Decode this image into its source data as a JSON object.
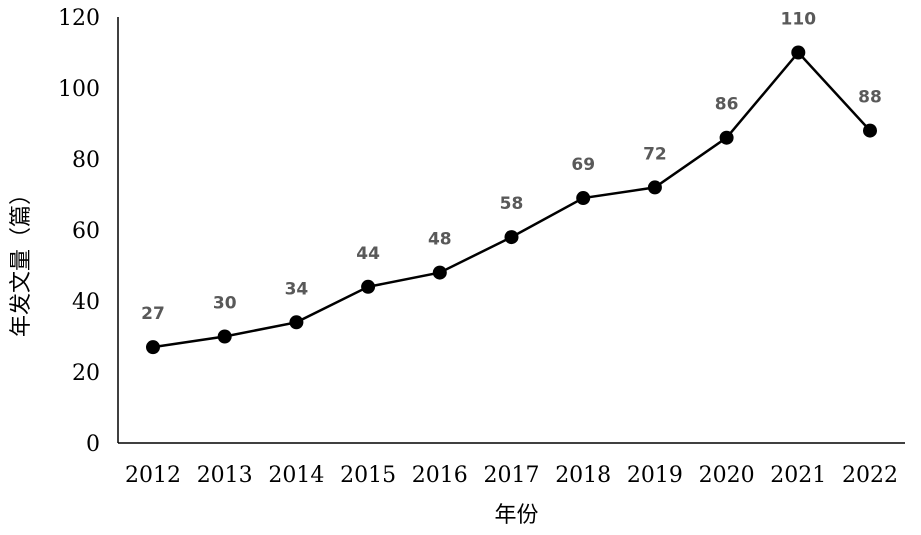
{
  "chart_data": {
    "type": "line",
    "title": "",
    "xlabel": "年份",
    "ylabel": "年发文量（篇）",
    "ylim": [
      0,
      120
    ],
    "yticks": [
      0,
      20,
      40,
      60,
      80,
      100,
      120
    ],
    "grid": false,
    "legend": "none",
    "categories": [
      "2012",
      "2013",
      "2014",
      "2015",
      "2016",
      "2017",
      "2018",
      "2019",
      "2020",
      "2021",
      "2022"
    ],
    "series": [
      {
        "values": [
          27,
          30,
          34,
          44,
          48,
          58,
          69,
          72,
          86,
          110,
          88
        ],
        "data_labels": [
          "27",
          "30",
          "34",
          "44",
          "48",
          "58",
          "69",
          "72",
          "86",
          "110",
          "88"
        ],
        "color": "#000000"
      }
    ],
    "label_color": "#595959"
  }
}
